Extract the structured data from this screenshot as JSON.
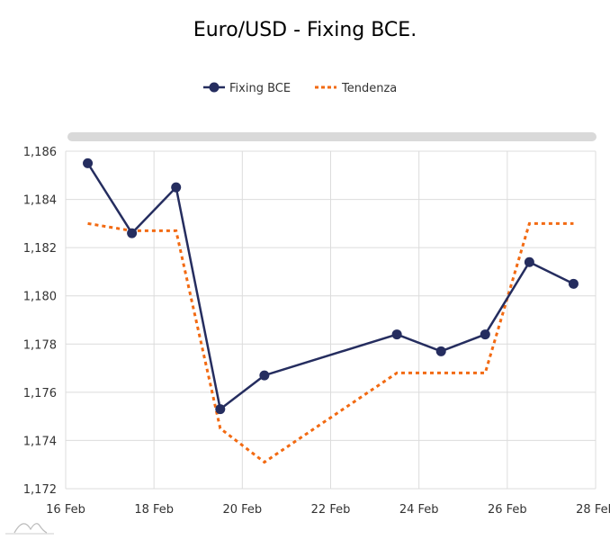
{
  "chart_data": {
    "type": "line",
    "title": "Euro/USD - Fixing BCE.",
    "xlabel": "",
    "ylabel": "",
    "x": [
      16.5,
      17.5,
      18.5,
      19.5,
      20.5,
      23.5,
      24.5,
      25.5,
      26.5,
      27.5
    ],
    "xlim": [
      16,
      28
    ],
    "ylim": [
      1.172,
      1.186
    ],
    "grid": true,
    "legend_position": "top-center",
    "x_tick_values": [
      16,
      18,
      20,
      22,
      24,
      26,
      28
    ],
    "x_tick_labels": [
      "16 Feb",
      "18 Feb",
      "20 Feb",
      "22 Feb",
      "24 Feb",
      "26 Feb",
      "28 Feb"
    ],
    "y_tick_values": [
      1.172,
      1.174,
      1.176,
      1.178,
      1.18,
      1.182,
      1.184,
      1.186
    ],
    "y_tick_labels": [
      "1,172",
      "1,174",
      "1,176",
      "1,178",
      "1,180",
      "1,182",
      "1,184",
      "1,186"
    ],
    "series": [
      {
        "name": "Fixing BCE",
        "color": "#252d5f",
        "style": "solid-markers",
        "values": [
          1.1855,
          1.1826,
          1.1845,
          1.1753,
          1.1767,
          1.1784,
          1.1777,
          1.1784,
          1.1814,
          1.1805
        ]
      },
      {
        "name": "Tendenza",
        "color": "#f26a12",
        "style": "dashed",
        "values": [
          1.183,
          1.1827,
          1.1827,
          1.1745,
          1.1731,
          1.1768,
          1.1768,
          1.1768,
          1.183,
          1.183
        ]
      }
    ]
  }
}
